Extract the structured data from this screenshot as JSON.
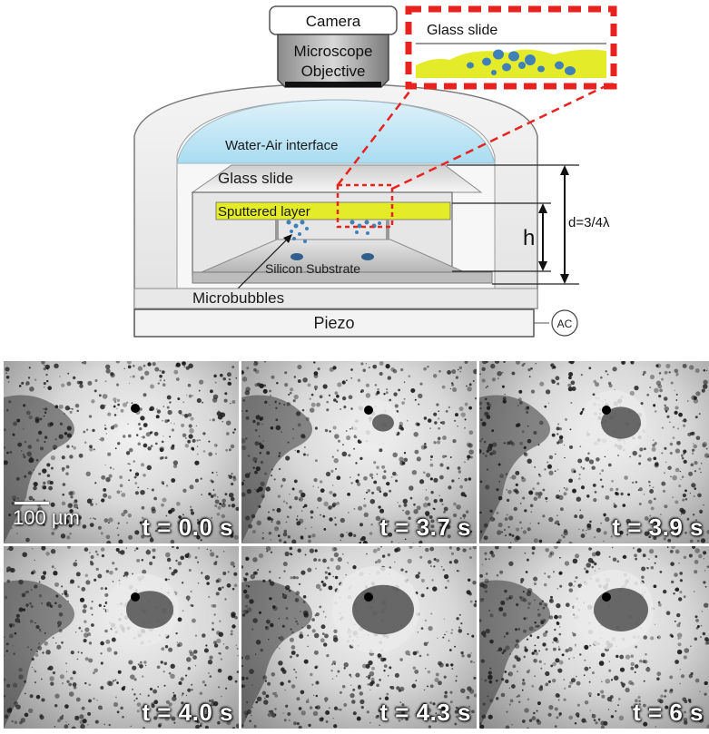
{
  "diagram": {
    "camera": "Camera",
    "objective_line1": "Microscope",
    "objective_line2": "Objective",
    "inset_label": "Glass slide",
    "water_air": "Water-Air interface",
    "glass_slide": "Glass slide",
    "sputtered_layer": "Sputtered layer",
    "silicon_substrate": "Silicon Substrate",
    "microbubbles": "Microbubbles",
    "piezo": "Piezo",
    "ac": "AC",
    "h_label": "h",
    "d_label": "d=3/4λ"
  },
  "colors": {
    "sputtered": "#e4ec2a",
    "highlight": "#e8231f",
    "water": "#bfe6f5",
    "bubble": "#3f80b8"
  },
  "micrographs": {
    "scale_label": "100 µm",
    "frames": [
      {
        "time": "t = 0.0 s"
      },
      {
        "time": "t = 3.7 s"
      },
      {
        "time": "t = 3.9 s"
      },
      {
        "time": "t = 4.0 s"
      },
      {
        "time": "t = 4.3 s"
      },
      {
        "time": "t = 6 s"
      }
    ]
  }
}
